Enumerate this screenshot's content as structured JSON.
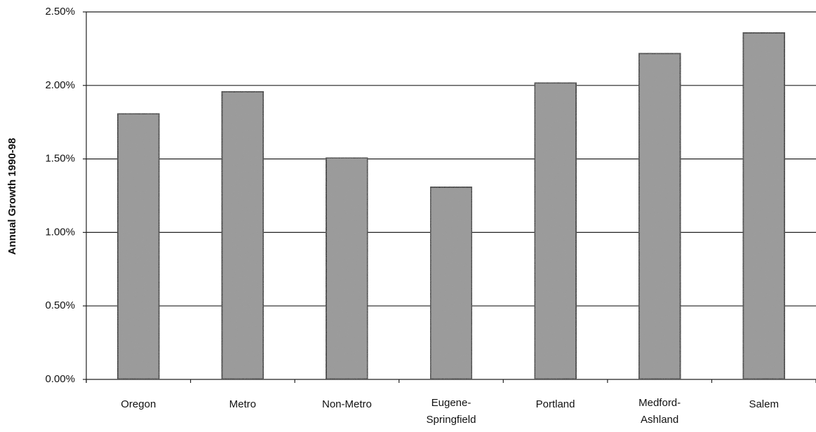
{
  "chart_data": {
    "type": "bar",
    "y_label": "Annual Growth 1990-98",
    "categories": [
      "Oregon",
      "Metro",
      "Non-Metro",
      "Eugene-\nSpringfield",
      "Portland",
      "Medford-\nAshland",
      "Salem"
    ],
    "values": [
      1.81,
      1.96,
      1.51,
      1.31,
      2.02,
      2.22,
      2.36
    ],
    "color": "#9a9a9a",
    "ylim": [
      0,
      2.5
    ],
    "yticks": [
      {
        "value": 0,
        "label": "0.00%"
      },
      {
        "value": 0.5,
        "label": "0.50%"
      },
      {
        "value": 1,
        "label": "1.00%"
      },
      {
        "value": 1.5,
        "label": "1.50%"
      },
      {
        "value": 2,
        "label": "2.00%"
      },
      {
        "value": 2.5,
        "label": "2.50%"
      }
    ],
    "grid": true
  }
}
